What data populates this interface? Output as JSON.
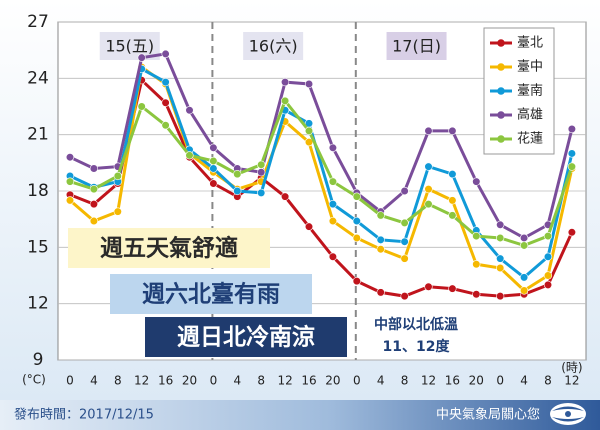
{
  "chart_data": {
    "type": "line",
    "y_unit": "(°C)",
    "x_unit": "(時)",
    "day_labels": [
      "15(五)",
      "16(六)",
      "17(日)"
    ],
    "categories": [
      "0",
      "4",
      "8",
      "12",
      "16",
      "20",
      "0",
      "4",
      "8",
      "12",
      "16",
      "20",
      "0",
      "4",
      "8",
      "12",
      "16",
      "20",
      "0",
      "4",
      "8",
      "12"
    ],
    "series": [
      {
        "name": "臺北",
        "color": "#c0141c",
        "values": [
          17.8,
          17.3,
          18.4,
          23.9,
          22.7,
          19.8,
          18.4,
          17.7,
          18.7,
          17.7,
          16.1,
          14.5,
          13.2,
          12.6,
          12.4,
          12.9,
          12.8,
          12.5,
          12.4,
          12.5,
          13.0,
          15.8
        ]
      },
      {
        "name": "臺中",
        "color": "#f5b800",
        "values": [
          17.5,
          16.4,
          16.9,
          24.6,
          23.7,
          20.0,
          19.0,
          18.1,
          18.5,
          21.7,
          20.6,
          16.4,
          15.5,
          14.9,
          14.4,
          18.1,
          17.5,
          14.1,
          13.9,
          12.7,
          13.5,
          19.2
        ]
      },
      {
        "name": "臺南",
        "color": "#109ad8",
        "values": [
          18.8,
          18.2,
          18.5,
          24.5,
          23.8,
          20.2,
          19.2,
          18.0,
          17.9,
          22.3,
          21.6,
          17.3,
          16.4,
          15.4,
          15.3,
          19.3,
          18.9,
          15.9,
          14.4,
          13.4,
          14.5,
          20.0
        ]
      },
      {
        "name": "高雄",
        "color": "#7a4d9a",
        "values": [
          19.8,
          19.2,
          19.3,
          25.1,
          25.3,
          22.3,
          20.3,
          19.2,
          19.0,
          23.8,
          23.7,
          20.3,
          17.9,
          16.9,
          18.0,
          21.2,
          21.2,
          18.5,
          16.2,
          15.5,
          16.2,
          21.3
        ]
      },
      {
        "name": "花蓮",
        "color": "#8cc63f",
        "values": [
          18.5,
          18.1,
          18.8,
          22.5,
          21.5,
          19.9,
          19.6,
          18.9,
          19.4,
          22.8,
          21.2,
          18.5,
          17.7,
          16.7,
          16.3,
          17.3,
          16.7,
          15.6,
          15.5,
          15.1,
          15.6,
          19.3
        ]
      }
    ],
    "ylim": [
      9,
      27
    ],
    "yticks": [
      9,
      12,
      15,
      18,
      21,
      24,
      27
    ],
    "legend": "top-right",
    "callouts": [
      "週五天氣舒適",
      "週六北臺有雨",
      "週日北冷南涼"
    ],
    "annotation": [
      "中部以北低溫",
      "11、12度"
    ]
  },
  "footer": {
    "date": "發布時間：2017/12/15",
    "org": "中央氣象局關心您"
  }
}
